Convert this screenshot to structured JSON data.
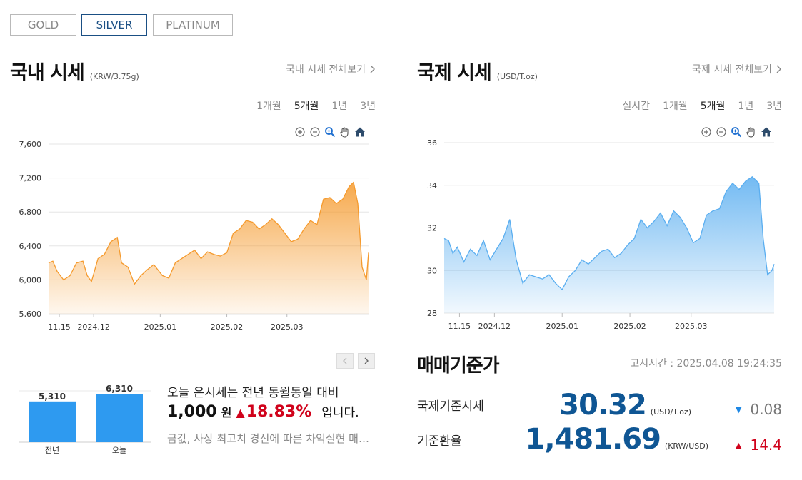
{
  "metal_tabs": [
    {
      "label": "GOLD",
      "active": false
    },
    {
      "label": "SILVER",
      "active": true
    },
    {
      "label": "PLATINUM",
      "active": false
    }
  ],
  "domestic": {
    "title": "국내 시세",
    "unit": "(KRW/3.75g)",
    "more_link": "국내 시세 전체보기",
    "periods": [
      {
        "label": "1개월",
        "active": false
      },
      {
        "label": "5개월",
        "active": true
      },
      {
        "label": "1년",
        "active": false
      },
      {
        "label": "3년",
        "active": false
      }
    ],
    "chart_data": {
      "type": "area",
      "color": "#f59a2d",
      "ylim": [
        5600,
        7600
      ],
      "yticks": [
        5600,
        6000,
        6400,
        6800,
        7200,
        7600
      ],
      "yticks_labels": [
        "5,600",
        "6,000",
        "6,400",
        "6,800",
        "7,200",
        "7,600"
      ],
      "x_range": [
        "2024-11-10",
        "2025-04-08"
      ],
      "xticks": [
        {
          "date": "2024-11-15",
          "label": "11.15"
        },
        {
          "date": "2024-12-01",
          "label": "2024.12"
        },
        {
          "date": "2025-01-01",
          "label": "2025.01"
        },
        {
          "date": "2025-02-01",
          "label": "2025.02"
        },
        {
          "date": "2025-03-01",
          "label": "2025.03"
        }
      ],
      "series": [
        {
          "x": [
            "2024-11-10",
            "2024-11-12",
            "2024-11-14",
            "2024-11-17",
            "2024-11-20",
            "2024-11-23",
            "2024-11-26",
            "2024-11-28",
            "2024-11-30",
            "2024-12-03",
            "2024-12-06",
            "2024-12-09",
            "2024-12-12",
            "2024-12-14",
            "2024-12-17",
            "2024-12-20",
            "2024-12-23",
            "2024-12-26",
            "2024-12-29",
            "2025-01-02",
            "2025-01-05",
            "2025-01-08",
            "2025-01-11",
            "2025-01-14",
            "2025-01-17",
            "2025-01-20",
            "2025-01-23",
            "2025-01-26",
            "2025-01-29",
            "2025-02-01",
            "2025-02-04",
            "2025-02-07",
            "2025-02-10",
            "2025-02-13",
            "2025-02-16",
            "2025-02-19",
            "2025-02-22",
            "2025-02-25",
            "2025-02-28",
            "2025-03-03",
            "2025-03-06",
            "2025-03-09",
            "2025-03-12",
            "2025-03-15",
            "2025-03-18",
            "2025-03-21",
            "2025-03-24",
            "2025-03-27",
            "2025-03-30",
            "2025-04-01",
            "2025-04-03",
            "2025-04-05",
            "2025-04-07",
            "2025-04-08"
          ],
          "values": [
            6200,
            6220,
            6100,
            6000,
            6050,
            6200,
            6220,
            6050,
            5980,
            6250,
            6300,
            6450,
            6500,
            6200,
            6150,
            5950,
            6050,
            6120,
            6180,
            6050,
            6020,
            6200,
            6250,
            6300,
            6350,
            6250,
            6330,
            6300,
            6280,
            6320,
            6550,
            6600,
            6700,
            6680,
            6600,
            6650,
            6720,
            6650,
            6550,
            6450,
            6480,
            6600,
            6700,
            6650,
            6950,
            6970,
            6900,
            6950,
            7100,
            7150,
            6900,
            6150,
            6000,
            6320
          ]
        }
      ]
    }
  },
  "international": {
    "title": "국제 시세",
    "unit": "(USD/T.oz)",
    "more_link": "국제 시세 전체보기",
    "periods": [
      {
        "label": "실시간",
        "active": false
      },
      {
        "label": "1개월",
        "active": false
      },
      {
        "label": "5개월",
        "active": true
      },
      {
        "label": "1년",
        "active": false
      },
      {
        "label": "3년",
        "active": false
      }
    ],
    "chart_data": {
      "type": "area",
      "color": "#5aaef0",
      "ylim": [
        28,
        36
      ],
      "yticks": [
        28,
        30,
        32,
        34,
        36
      ],
      "yticks_labels": [
        "28",
        "30",
        "32",
        "34",
        "36"
      ],
      "x_range": [
        "2024-11-08",
        "2025-04-08"
      ],
      "xticks": [
        {
          "date": "2024-11-15",
          "label": "11.15"
        },
        {
          "date": "2024-12-01",
          "label": "2024.12"
        },
        {
          "date": "2025-01-01",
          "label": "2025.01"
        },
        {
          "date": "2025-02-01",
          "label": "2025.02"
        },
        {
          "date": "2025-03-01",
          "label": "2025.03"
        }
      ],
      "series": [
        {
          "x": [
            "2024-11-08",
            "2024-11-10",
            "2024-11-12",
            "2024-11-14",
            "2024-11-17",
            "2024-11-20",
            "2024-11-23",
            "2024-11-26",
            "2024-11-29",
            "2024-12-02",
            "2024-12-05",
            "2024-12-08",
            "2024-12-11",
            "2024-12-14",
            "2024-12-17",
            "2024-12-20",
            "2024-12-23",
            "2024-12-26",
            "2024-12-29",
            "2025-01-01",
            "2025-01-04",
            "2025-01-07",
            "2025-01-10",
            "2025-01-13",
            "2025-01-16",
            "2025-01-19",
            "2025-01-22",
            "2025-01-25",
            "2025-01-28",
            "2025-01-31",
            "2025-02-03",
            "2025-02-06",
            "2025-02-09",
            "2025-02-12",
            "2025-02-15",
            "2025-02-18",
            "2025-02-21",
            "2025-02-24",
            "2025-02-27",
            "2025-03-02",
            "2025-03-05",
            "2025-03-08",
            "2025-03-11",
            "2025-03-14",
            "2025-03-17",
            "2025-03-20",
            "2025-03-23",
            "2025-03-26",
            "2025-03-29",
            "2025-04-01",
            "2025-04-03",
            "2025-04-05",
            "2025-04-07",
            "2025-04-08"
          ],
          "values": [
            31.5,
            31.4,
            30.8,
            31.1,
            30.4,
            31.0,
            30.7,
            31.4,
            30.5,
            31.0,
            31.5,
            32.4,
            30.5,
            29.4,
            29.8,
            29.7,
            29.6,
            29.8,
            29.4,
            29.1,
            29.7,
            30.0,
            30.5,
            30.3,
            30.6,
            30.9,
            31.0,
            30.6,
            30.8,
            31.2,
            31.5,
            32.4,
            32.0,
            32.3,
            32.7,
            32.1,
            32.8,
            32.5,
            32.0,
            31.3,
            31.5,
            32.6,
            32.8,
            32.9,
            33.7,
            34.1,
            33.8,
            34.2,
            34.4,
            34.1,
            31.5,
            29.8,
            30.0,
            30.3
          ]
        }
      ]
    }
  },
  "comparison": {
    "bar_chart": {
      "type": "bar",
      "color": "#2e9af0",
      "ylim": [
        0,
        6500
      ],
      "categories": [
        "전년",
        "오늘"
      ],
      "values": [
        5310,
        6310
      ],
      "value_labels": [
        "5,310",
        "6,310"
      ]
    },
    "sentence": "오늘 은시세는 전년 동월동일 대비",
    "amount": "1,000",
    "amount_unit": "원",
    "change_arrow": "▲",
    "change_percent": "18.83%",
    "suffix": "입니다.",
    "news": "금값, 사상 최고치 경신에 따른 차익실현 매물 출회"
  },
  "standard": {
    "title": "매매기준가",
    "notice": "고시시간 : 2025.04.08 19:24:35",
    "rows": [
      {
        "label": "국제기준시세",
        "value": "30.32",
        "unit": "(USD/T.oz)",
        "arrow": "▼",
        "change": "0.08",
        "direction": "down"
      },
      {
        "label": "기준환율",
        "value": "1,481.69",
        "unit": "(KRW/USD)",
        "arrow": "▲",
        "change": "14.4",
        "direction": "up"
      }
    ]
  }
}
